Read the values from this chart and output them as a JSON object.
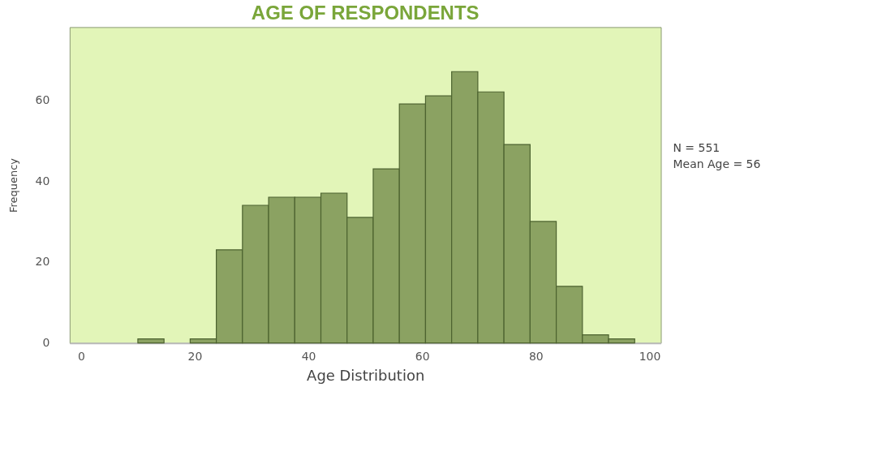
{
  "chart_data": {
    "type": "histogram",
    "title": "AGE OF RESPONDENTS",
    "xlabel": "Age Distribution",
    "ylabel": "Frequency",
    "bins": [
      10,
      14.6,
      19.2,
      23.8,
      28.4,
      33,
      37.6,
      42.2,
      46.8,
      51.4,
      56,
      60.6,
      65.2,
      69.8,
      74.4,
      79,
      83.6,
      88.2,
      92.8,
      97.4
    ],
    "values": [
      1,
      0,
      1,
      23,
      34,
      36,
      36,
      37,
      31,
      43,
      59,
      61,
      67,
      62,
      49,
      30,
      14,
      2,
      1
    ],
    "color": "#8ba262",
    "xlim": [
      -2,
      102
    ],
    "xticks": [
      0,
      20,
      40,
      60,
      80,
      100
    ],
    "ylim": [
      0,
      78
    ],
    "yticks": [
      0,
      20,
      40,
      60
    ],
    "grid": false,
    "annotations": [
      "N = 551",
      "Mean  Age = 56"
    ]
  }
}
